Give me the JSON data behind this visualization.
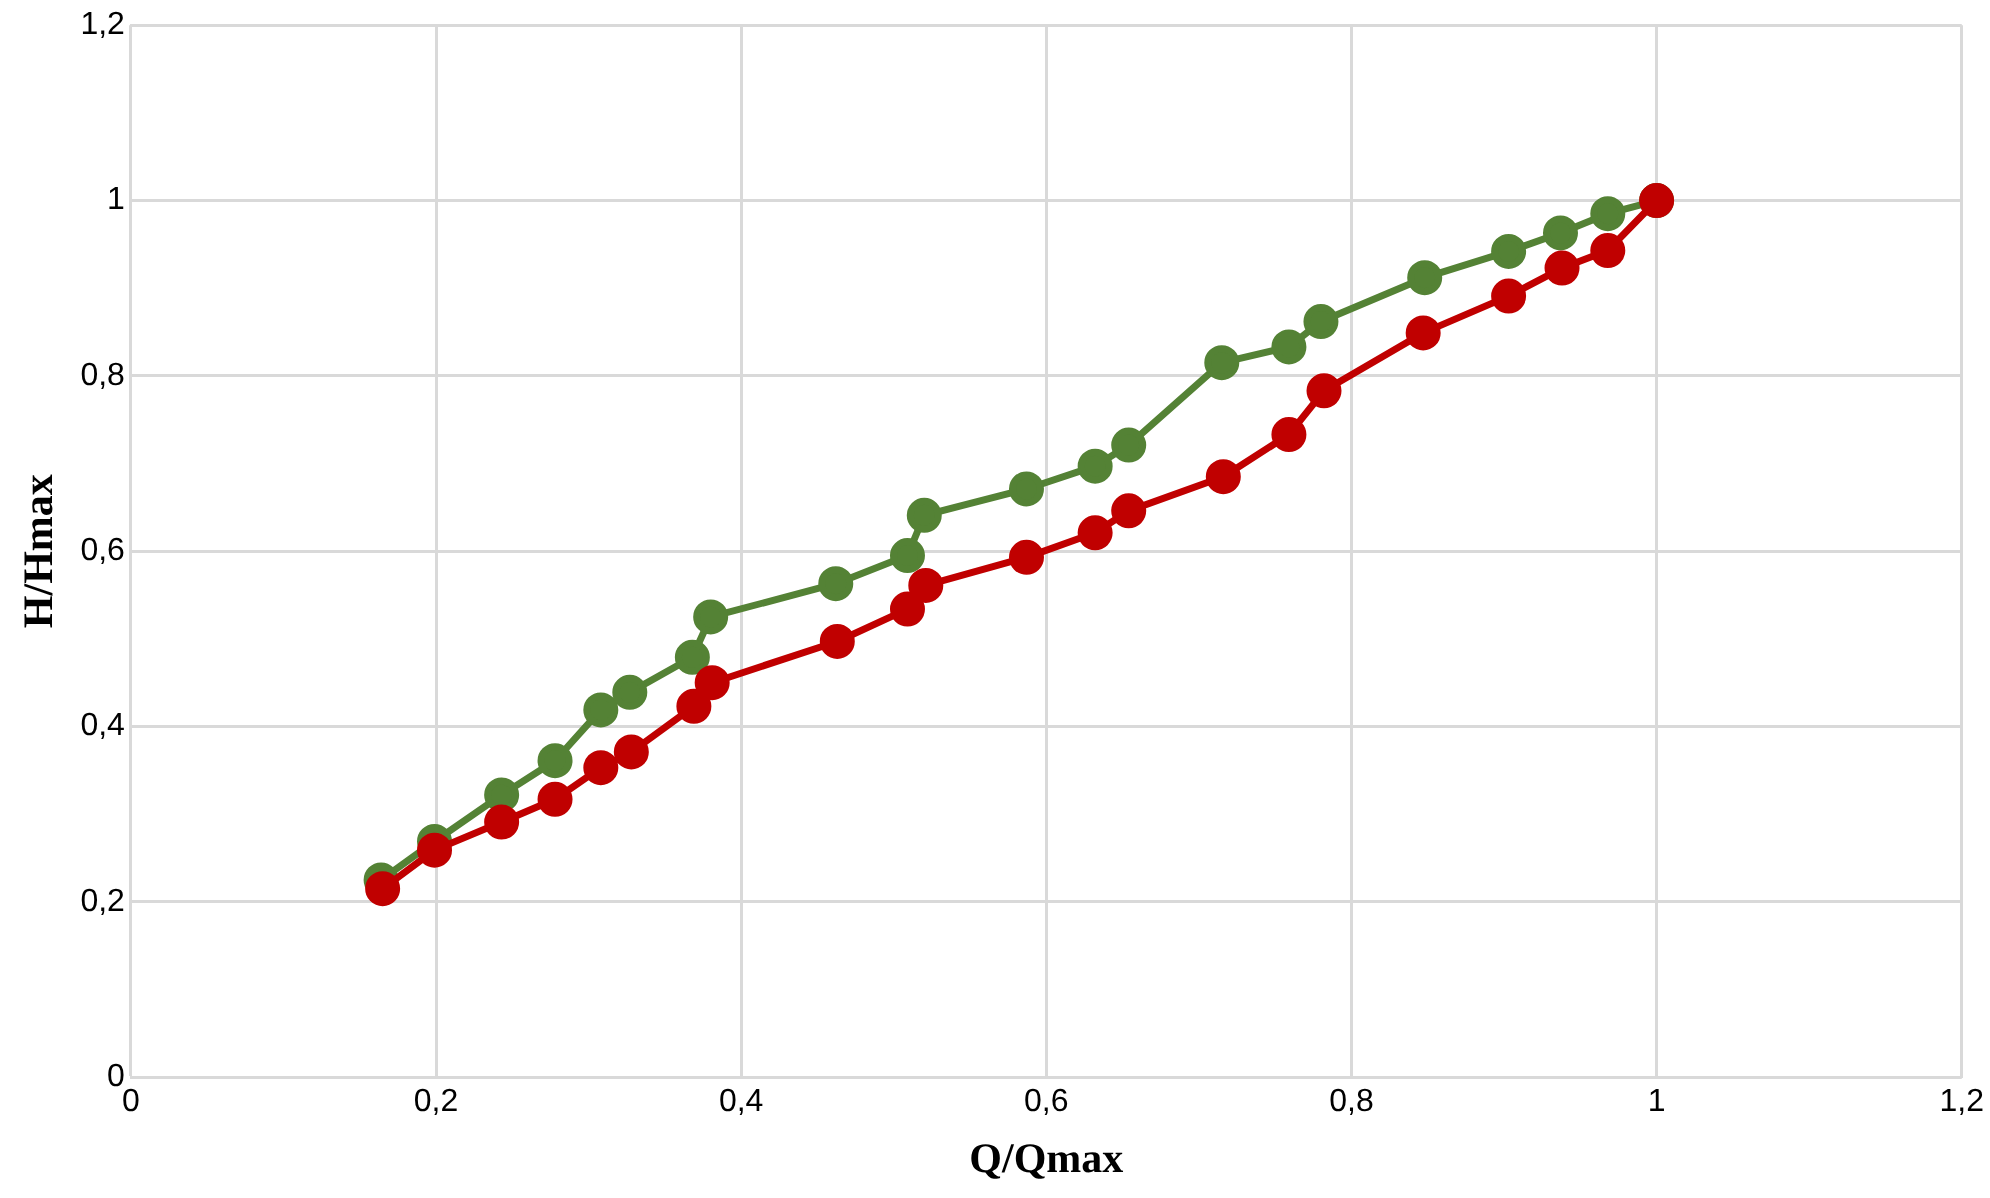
{
  "chart_data": {
    "type": "line",
    "xlabel": "Q/Qmax",
    "ylabel": "H/Hmax",
    "marker": "circle",
    "line_style": "solid",
    "grid": true,
    "legend": false,
    "xlim": [
      0,
      1.2
    ],
    "ylim": [
      0,
      1.2
    ],
    "xticks": [
      0,
      {
        "value": 0.2,
        "label": "0,2"
      },
      {
        "value": 0.4,
        "label": "0,4"
      },
      {
        "value": 0.6,
        "label": "0,6"
      },
      {
        "value": 0.8,
        "label": "0,8"
      },
      1,
      {
        "value": 1.2,
        "label": "1,2"
      }
    ],
    "yticks": [
      0,
      {
        "value": 0.2,
        "label": "0,2"
      },
      {
        "value": 0.4,
        "label": "0,4"
      },
      {
        "value": 0.6,
        "label": "0,6"
      },
      {
        "value": 0.8,
        "label": "0,8"
      },
      1,
      {
        "value": 1.2,
        "label": "1,2"
      }
    ],
    "series": [
      {
        "color": "#548235",
        "x": [
          0.164,
          0.199,
          0.243,
          0.278,
          0.308,
          0.327,
          0.368,
          0.38,
          0.462,
          0.509,
          0.52,
          0.587,
          0.632,
          0.654,
          0.715,
          0.759,
          0.78,
          0.848,
          0.903,
          0.937,
          0.968,
          1
        ],
        "values": [
          0.225,
          0.269,
          0.322,
          0.361,
          0.419,
          0.439,
          0.479,
          0.525,
          0.563,
          0.595,
          0.641,
          0.671,
          0.697,
          0.721,
          0.815,
          0.833,
          0.862,
          0.912,
          0.942,
          0.963,
          0.985,
          1
        ]
      },
      {
        "color": "#c00000",
        "x": [
          0.165,
          0.199,
          0.243,
          0.278,
          0.308,
          0.328,
          0.369,
          0.381,
          0.463,
          0.509,
          0.521,
          0.587,
          0.632,
          0.654,
          0.716,
          0.759,
          0.782,
          0.847,
          0.903,
          0.938,
          0.968,
          1
        ],
        "values": [
          0.215,
          0.259,
          0.291,
          0.317,
          0.353,
          0.371,
          0.423,
          0.45,
          0.497,
          0.534,
          0.561,
          0.593,
          0.621,
          0.646,
          0.685,
          0.733,
          0.783,
          0.849,
          0.891,
          0.923,
          0.943,
          1
        ]
      }
    ]
  }
}
